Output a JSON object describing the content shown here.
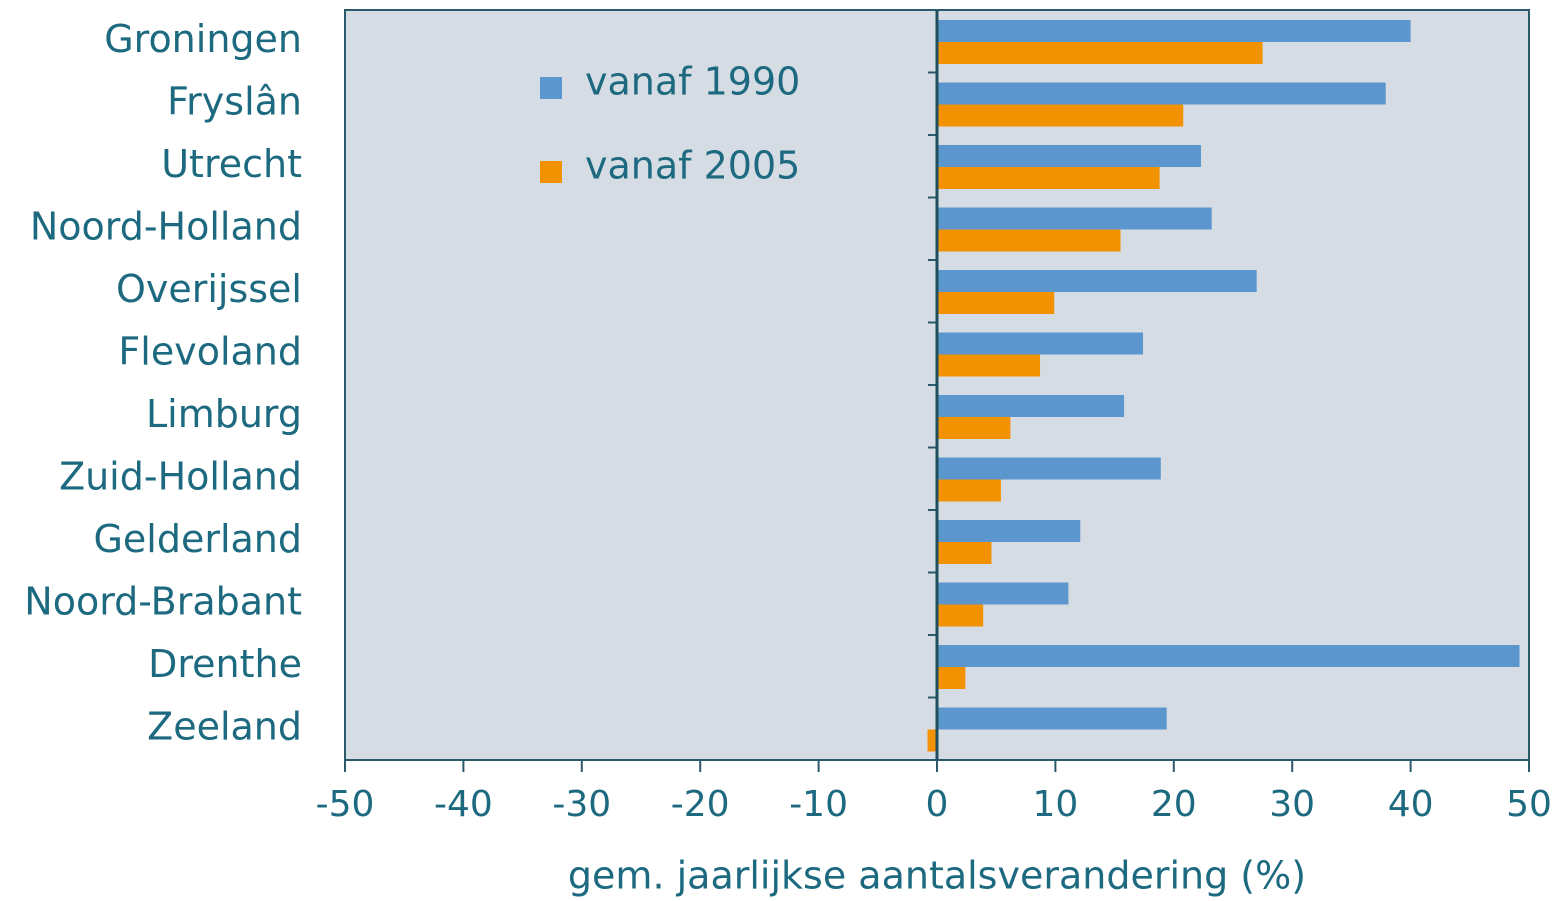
{
  "chart_data": {
    "type": "bar",
    "orientation": "horizontal",
    "categories": [
      "Groningen",
      "Fryslân",
      "Utrecht",
      "Noord-Holland",
      "Overijssel",
      "Flevoland",
      "Limburg",
      "Zuid-Holland",
      "Gelderland",
      "Noord-Brabant",
      "Drenthe",
      "Zeeland"
    ],
    "series": [
      {
        "name": "vanaf 1990",
        "color": "#5b96cc",
        "values": [
          40.0,
          37.9,
          22.3,
          23.2,
          27.0,
          17.4,
          15.8,
          18.9,
          12.1,
          11.1,
          49.2,
          19.4
        ]
      },
      {
        "name": "vanaf 2005",
        "color": "#f39200",
        "values": [
          27.5,
          20.8,
          18.8,
          15.5,
          9.9,
          8.7,
          6.2,
          5.4,
          4.6,
          3.9,
          2.4,
          -0.8
        ]
      }
    ],
    "xlabel": "gem. jaarlijkse aantalsverandering (%)",
    "xlim": [
      -50,
      50
    ],
    "xticks": [
      -50,
      -40,
      -30,
      -20,
      -10,
      0,
      10,
      20,
      30,
      40,
      50
    ],
    "legend": "upper-left",
    "background": "#d6dce4"
  }
}
